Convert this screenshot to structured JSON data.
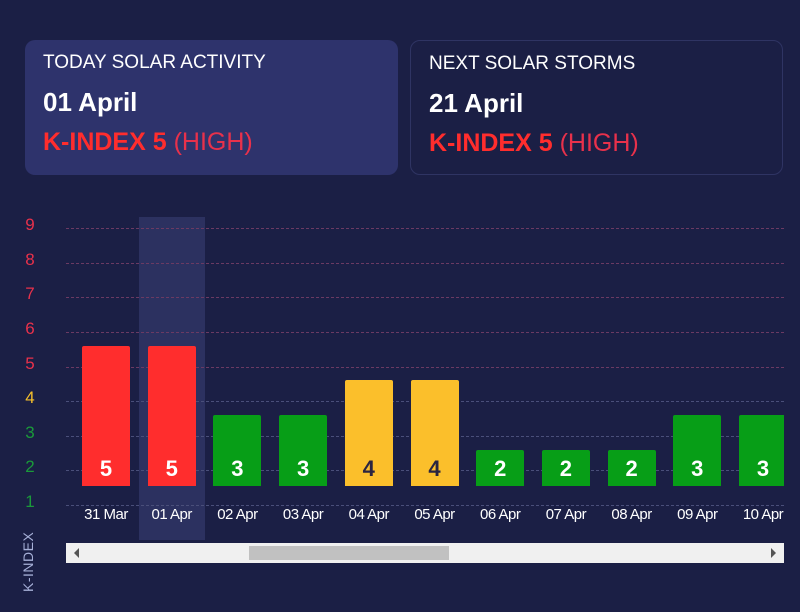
{
  "today": {
    "label": "TODAY SOLAR ACTIVITY",
    "date": "01 April",
    "kindex": "K-INDEX 5",
    "level": "(HIGH)"
  },
  "next": {
    "label": "NEXT SOLAR STORMS",
    "date": "21 April",
    "kindex": "K-INDEX 5",
    "level": "(HIGH)"
  },
  "colors": {
    "high": "#ff2d2d",
    "medium": "#fbbf2b",
    "low": "#079e17",
    "highLabel": "#e8314b",
    "mediumLabel": "#f5bf2b",
    "lowLabel": "#1a9a3a"
  },
  "chart_data": {
    "type": "bar",
    "ylabel": "K-INDEX",
    "ylim": [
      1,
      9
    ],
    "yticks": [
      "1",
      "2",
      "3",
      "4",
      "5",
      "6",
      "7",
      "8",
      "9"
    ],
    "categories": [
      "31 Mar",
      "01 Apr",
      "02 Apr",
      "03 Apr",
      "04 Apr",
      "05 Apr",
      "06 Apr",
      "07 Apr",
      "08 Apr",
      "09 Apr",
      "10 Apr"
    ],
    "values": [
      5,
      5,
      3,
      3,
      4,
      4,
      2,
      2,
      2,
      3,
      3
    ],
    "highlighted": "01 Apr",
    "scroll_position": 0.25,
    "grid": true
  }
}
